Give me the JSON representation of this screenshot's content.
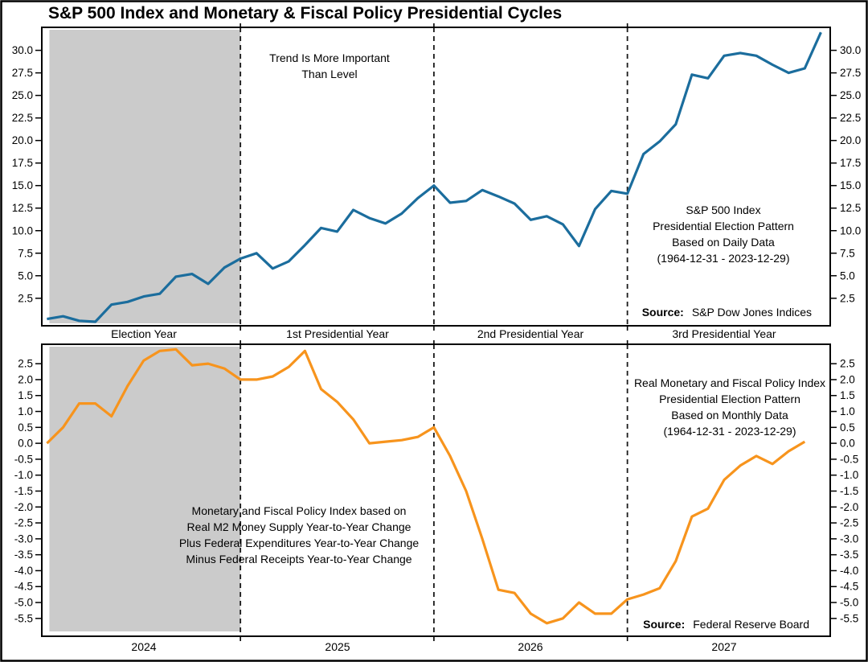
{
  "title": "S&P 500 Index and Monetary & Fiscal Policy Presidential Cycles",
  "colors": {
    "sp500_line": "#1B6D9D",
    "policy_line": "#F7941D",
    "election_shading": "#CBCBCB",
    "divider": "#1A1A1A",
    "frame": "#000000"
  },
  "chart_data": [
    {
      "type": "line",
      "panel": "top",
      "title": "S&P 500 Index Presidential Election Pattern",
      "grid": false,
      "legend_position": "none",
      "x_categories": [
        "Election Year",
        "1st Presidential Year",
        "2nd Presidential Year",
        "3rd Presidential Year"
      ],
      "y_ticks": [
        "2.5",
        "5.0",
        "7.5",
        "10.0",
        "12.5",
        "15.0",
        "17.5",
        "20.0",
        "22.5",
        "25.0",
        "27.5",
        "30.0"
      ],
      "ylim": [
        -0.55,
        32.55
      ],
      "xlim_months": [
        -0.32,
        48.58
      ],
      "dashed_months": [
        12,
        24,
        36
      ],
      "shaded_months": [
        0.15,
        12
      ],
      "series": [
        {
          "name": "S&P 500 Index Presidential Election Pattern",
          "color": "#1B6D9D",
          "x_start_month": 0,
          "values": [
            0.2,
            0.5,
            0.0,
            -0.1,
            1.8,
            2.1,
            2.7,
            3.0,
            4.9,
            5.2,
            4.1,
            5.9,
            6.9,
            7.5,
            5.8,
            6.6,
            8.4,
            10.3,
            9.9,
            12.3,
            11.4,
            10.8,
            11.9,
            13.6,
            15.0,
            13.1,
            13.3,
            14.5,
            13.8,
            13.0,
            11.2,
            11.6,
            10.7,
            8.3,
            12.4,
            14.4,
            14.1,
            18.5,
            19.9,
            21.8,
            27.3,
            26.9,
            29.4,
            29.7,
            29.4,
            28.4,
            27.5,
            28.0,
            32.0
          ]
        }
      ],
      "annotations": {
        "trend": [
          "Trend Is More Important",
          "Than Level"
        ],
        "pattern": [
          "S&P 500 Index",
          "Presidential Election Pattern",
          "Based on Daily Data",
          "(1964-12-31 - 2023-12-29)"
        ]
      },
      "source_label": "Source:",
      "source": "S&P Dow Jones Indices"
    },
    {
      "type": "line",
      "panel": "bottom",
      "title": "Real Monetary and Fiscal Policy Index Presidential Election Pattern",
      "grid": false,
      "legend_position": "none",
      "x_categories": [
        "2024",
        "2025",
        "2026",
        "2027"
      ],
      "y_ticks": [
        "-5.5",
        "-5.0",
        "-4.5",
        "-4.0",
        "-3.5",
        "-3.0",
        "-2.5",
        "-2.0",
        "-1.5",
        "-1.0",
        "-0.5",
        "0.0",
        "0.5",
        "1.0",
        "1.5",
        "2.0",
        "2.5"
      ],
      "ylim": [
        -6.06,
        3.11
      ],
      "xlim_months": [
        -0.32,
        48.58
      ],
      "dashed_months": [
        12,
        24,
        36
      ],
      "shaded_months": [
        0.15,
        12
      ],
      "series": [
        {
          "name": "Real Monetary and Fiscal Policy Index",
          "color": "#F7941D",
          "x_start_month": 0,
          "values": [
            0.0,
            0.5,
            1.25,
            1.25,
            0.85,
            1.8,
            2.6,
            2.9,
            2.95,
            2.45,
            2.5,
            2.35,
            2.0,
            2.0,
            2.1,
            2.4,
            2.9,
            1.7,
            1.3,
            0.75,
            0.0,
            0.05,
            0.1,
            0.2,
            0.5,
            -0.4,
            -1.5,
            -3.0,
            -4.6,
            -4.7,
            -5.35,
            -5.65,
            -5.5,
            -5.0,
            -5.35,
            -5.35,
            -4.9,
            -4.75,
            -4.55,
            -3.7,
            -2.3,
            -2.05,
            -1.15,
            -0.7,
            -0.4,
            -0.65,
            -0.25,
            0.05
          ]
        }
      ],
      "annotations": {
        "pattern": [
          "Real Monetary and Fiscal Policy Index",
          "Presidential Election Pattern",
          "Based on Monthly Data",
          "(1964-12-31 - 2023-12-29)"
        ],
        "method": [
          "Monetary and Fiscal Policy Index based on",
          "Real M2 Money Supply Year-to-Year Change",
          "Plus Federal Expenditures Year-to-Year Change",
          "Minus Federal Receipts Year-to-Year Change"
        ]
      },
      "source_label": "Source:",
      "source": "Federal Reserve Board"
    }
  ]
}
